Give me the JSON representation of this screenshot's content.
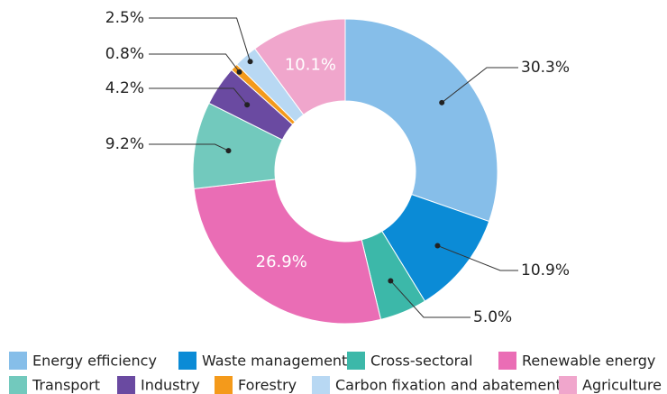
{
  "chart_data": {
    "type": "donut",
    "categories": [
      "Energy efficiency",
      "Waste management",
      "Cross-sectoral",
      "Renewable energy",
      "Transport",
      "Industry",
      "Forestry",
      "Carbon fixation and abatement",
      "Agriculture"
    ],
    "values": [
      30.3,
      10.9,
      5.0,
      26.9,
      9.2,
      4.2,
      0.8,
      2.5,
      10.1
    ],
    "value_labels": [
      "30.3%",
      "10.9%",
      "5.0%",
      "26.9%",
      "9.2%",
      "4.2%",
      "0.8%",
      "2.5%",
      "10.1%"
    ],
    "colors": [
      "#86bee9",
      "#0b8bd6",
      "#3cb8a9",
      "#ea6db5",
      "#72c9bd",
      "#6a4aa1",
      "#f49a1b",
      "#b8d8f3",
      "#f0a6cc"
    ],
    "legend": "bottom"
  }
}
